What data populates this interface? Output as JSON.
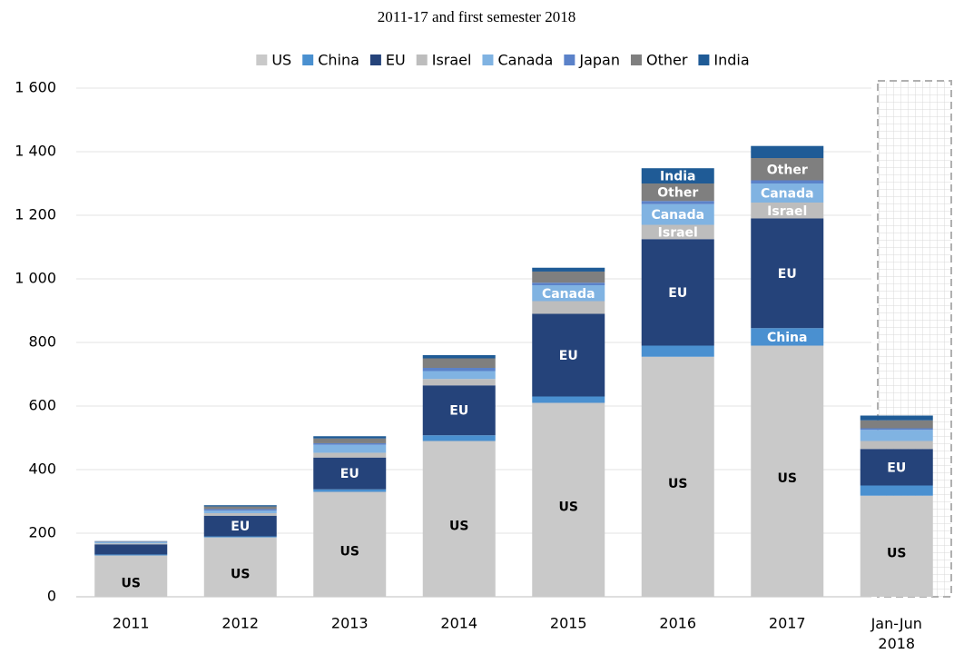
{
  "chart_data": {
    "type": "stacked_bar",
    "title": "2011-17 and first semester 2018",
    "categories": [
      "2011",
      "2012",
      "2013",
      "2014",
      "2015",
      "2016",
      "2017",
      "Jan-Jun 2018"
    ],
    "series": [
      {
        "name": "US",
        "color": "#c9c9c9",
        "values": [
          130,
          187,
          330,
          490,
          610,
          755,
          790,
          318
        ]
      },
      {
        "name": "China",
        "color": "#4a90d0",
        "values": [
          3,
          3,
          8,
          18,
          20,
          35,
          55,
          32
        ]
      },
      {
        "name": "EU",
        "color": "#25437a",
        "values": [
          32,
          65,
          100,
          157,
          260,
          335,
          345,
          115
        ]
      },
      {
        "name": "Israel",
        "color": "#bdbdbd",
        "values": [
          3,
          8,
          15,
          20,
          40,
          45,
          50,
          25
        ]
      },
      {
        "name": "Canada",
        "color": "#80b3e2",
        "values": [
          4,
          8,
          25,
          25,
          50,
          65,
          60,
          35
        ]
      },
      {
        "name": "Japan",
        "color": "#5b82c9",
        "values": [
          1,
          5,
          5,
          10,
          8,
          10,
          10,
          5
        ]
      },
      {
        "name": "Other",
        "color": "#7f7f7f",
        "values": [
          1,
          8,
          15,
          30,
          35,
          55,
          70,
          25
        ]
      },
      {
        "name": "India",
        "color": "#1f5b96",
        "values": [
          1,
          4,
          7,
          10,
          12,
          48,
          38,
          15
        ]
      }
    ],
    "ylim": [
      0,
      1600
    ],
    "yticks": [
      0,
      200,
      400,
      600,
      800,
      {
        "value": 1000,
        "label": "1 000"
      },
      {
        "value": 1200,
        "label": "1 200"
      },
      {
        "value": 1400,
        "label": "1 400"
      },
      {
        "value": 1600,
        "label": "1 600"
      }
    ],
    "grid": true,
    "legend": "top"
  }
}
